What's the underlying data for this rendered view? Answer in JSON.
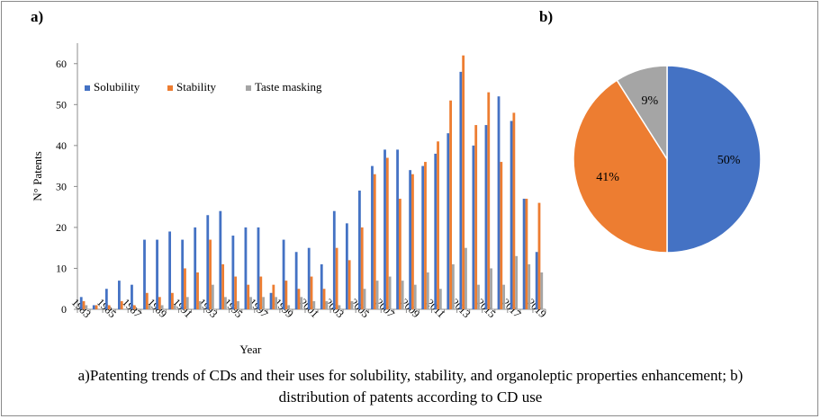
{
  "panel_labels": {
    "a": "a)",
    "b": "b)"
  },
  "caption": {
    "line1": "a)Patenting trends of CDs and their uses for solubility, stability, and organoleptic properties enhancement; b)",
    "line2": "distribution of patents according to CD use"
  },
  "colors": {
    "solubility": "#4472c4",
    "stability": "#ed7d31",
    "taste": "#a5a5a5"
  },
  "chart_data": [
    {
      "type": "bar",
      "title": "",
      "xlabel": "Year",
      "ylabel": "N° Patents",
      "ylim": [
        0,
        65
      ],
      "yticks": [
        0,
        10,
        20,
        30,
        40,
        50,
        60
      ],
      "grid": false,
      "legend_position": "top-left",
      "categories": [
        "1983",
        "1984",
        "1985",
        "1986",
        "1987",
        "1988",
        "1989",
        "1990",
        "1991",
        "1992",
        "1993",
        "1994",
        "1995",
        "1996",
        "1997",
        "1998",
        "1999",
        "2000",
        "2001",
        "2002",
        "2003",
        "2004",
        "2005",
        "2006",
        "2007",
        "2008",
        "2009",
        "2010",
        "2011",
        "2012",
        "2013",
        "2014",
        "2015",
        "2016",
        "2017",
        "2018",
        "2019"
      ],
      "xtick_labels": [
        "1983",
        "1985",
        "1987",
        "1989",
        "1991",
        "1993",
        "1995",
        "1997",
        "1999",
        "2001",
        "2003",
        "2005",
        "2007",
        "2009",
        "2011",
        "2013",
        "2015",
        "2017",
        "2019"
      ],
      "series": [
        {
          "name": "Solubility",
          "values": [
            3,
            1,
            5,
            7,
            6,
            17,
            17,
            19,
            17,
            20,
            23,
            24,
            18,
            20,
            20,
            4,
            17,
            14,
            15,
            11,
            24,
            21,
            29,
            35,
            39,
            39,
            34,
            35,
            38,
            43,
            58,
            40,
            45,
            52,
            46,
            27,
            14
          ]
        },
        {
          "name": "Stability",
          "values": [
            2,
            1,
            1,
            2,
            1,
            4,
            3,
            4,
            10,
            9,
            17,
            11,
            8,
            6,
            8,
            6,
            7,
            5,
            8,
            5,
            15,
            12,
            20,
            33,
            37,
            27,
            33,
            36,
            41,
            51,
            62,
            45,
            53,
            36,
            48,
            27,
            26
          ]
        },
        {
          "name": "Taste masking",
          "values": [
            1,
            0,
            0,
            0,
            0,
            1,
            1,
            1,
            3,
            2,
            6,
            3,
            2,
            3,
            3,
            3,
            1,
            3,
            2,
            2,
            1,
            2,
            5,
            7,
            8,
            7,
            6,
            9,
            5,
            11,
            15,
            6,
            10,
            6,
            13,
            11,
            9
          ]
        }
      ]
    },
    {
      "type": "pie",
      "title": "",
      "slices": [
        {
          "label": "50%",
          "value": 50
        },
        {
          "label": "41%",
          "value": 41
        },
        {
          "label": "9%",
          "value": 9
        }
      ]
    }
  ]
}
